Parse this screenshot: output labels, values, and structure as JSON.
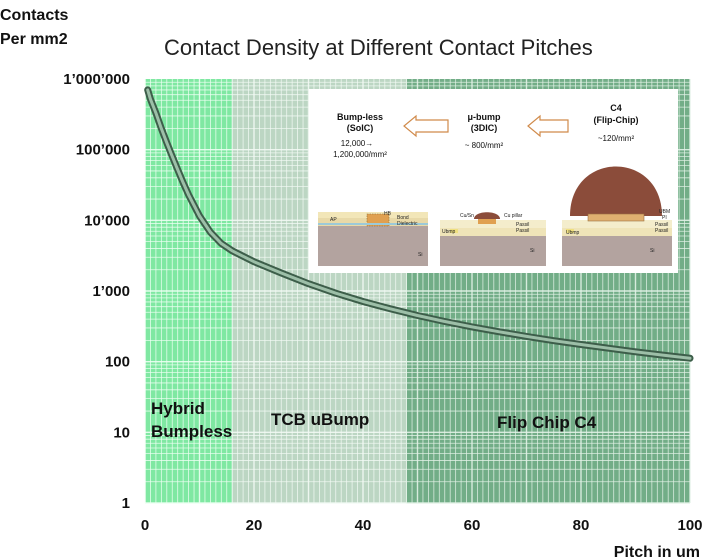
{
  "chart_data": {
    "type": "line",
    "title": "Contact Density  at Different Contact Pitches",
    "ylabel_line1": "Contacts",
    "ylabel_line2": "Per mm2",
    "xlabel": "Pitch in um",
    "xscale": "linear",
    "yscale": "log",
    "xlim": [
      0,
      100
    ],
    "ylim": [
      1,
      1000000
    ],
    "x_ticks": [
      {
        "value": 0,
        "label": "0"
      },
      {
        "value": 20,
        "label": "20"
      },
      {
        "value": 40,
        "label": "40"
      },
      {
        "value": 60,
        "label": "60"
      },
      {
        "value": 80,
        "label": "80"
      },
      {
        "value": 100,
        "label": "100"
      }
    ],
    "y_ticks": [
      {
        "value": 1,
        "label": "1"
      },
      {
        "value": 10,
        "label": "10"
      },
      {
        "value": 100,
        "label": "100"
      },
      {
        "value": 1000,
        "label": "1’000"
      },
      {
        "value": 10000,
        "label": "10’000"
      },
      {
        "value": 100000,
        "label": "100’000"
      },
      {
        "value": 1000000,
        "label": "1’000’000"
      }
    ],
    "series": [
      {
        "x": [
          0.5,
          1,
          2,
          3,
          4,
          5,
          6,
          7,
          8,
          10,
          12,
          14,
          16,
          18,
          20,
          25,
          30,
          35,
          40,
          45,
          50,
          55,
          60,
          65,
          70,
          75,
          80,
          85,
          90,
          95,
          100
        ],
        "y": [
          700000,
          520000,
          330000,
          200000,
          125000,
          80000,
          52000,
          34000,
          23000,
          11500,
          6800,
          4700,
          3700,
          3100,
          2600,
          1800,
          1270,
          930,
          710,
          560,
          450,
          370,
          310,
          265,
          228,
          198,
          175,
          155,
          138,
          124,
          112
        ]
      }
    ],
    "regions": [
      {
        "label_line1": "Hybrid",
        "label_line2": "Bumpless",
        "x_start": 0,
        "x_end": 16,
        "color": "#7fe8a2",
        "line_color": "#ecfff2"
      },
      {
        "label_line1": "TCB  uBump",
        "label_line2": "",
        "x_start": 16,
        "x_end": 48,
        "color": "#bcd6c3",
        "line_color": "#f2faf4"
      },
      {
        "label_line1": "Flip Chip  C4",
        "label_line2": "",
        "x_start": 48,
        "x_end": 100,
        "color": "#72ad87",
        "line_color": "#e2f2e7"
      }
    ],
    "curve_color": "#3d5e4a",
    "grid": true,
    "legend": "none"
  },
  "inset": {
    "bumpless": {
      "title1": "Bump-less",
      "title2": "(SoIC)",
      "value1": "12,000→",
      "value2": "1,200,000/mm²",
      "label_ap": "AP",
      "label_si": "Si",
      "label_bond": "Bond",
      "label_bond2": "Dielectric",
      "label_hb": "HB"
    },
    "ubump": {
      "title1": "μ-bump",
      "title2": "(3DIC)",
      "value": "~ 800/mm²",
      "label_si": "Si",
      "label_cusn": "Cu/Sn",
      "label_cupillar": "Cu pillar",
      "label_ubm": "Ubmp",
      "label_pass": "Passil",
      "label_pass2": "Passil"
    },
    "c4": {
      "title1": "C4",
      "title2": "(Flip-Chip)",
      "value": "~120/mm²",
      "label_si": "Si",
      "label_ubm": "UBM",
      "label_pi": "PI",
      "label_ubmp": "Ubmp",
      "label_pass": "Passil",
      "label_pass2": "Passil"
    }
  }
}
